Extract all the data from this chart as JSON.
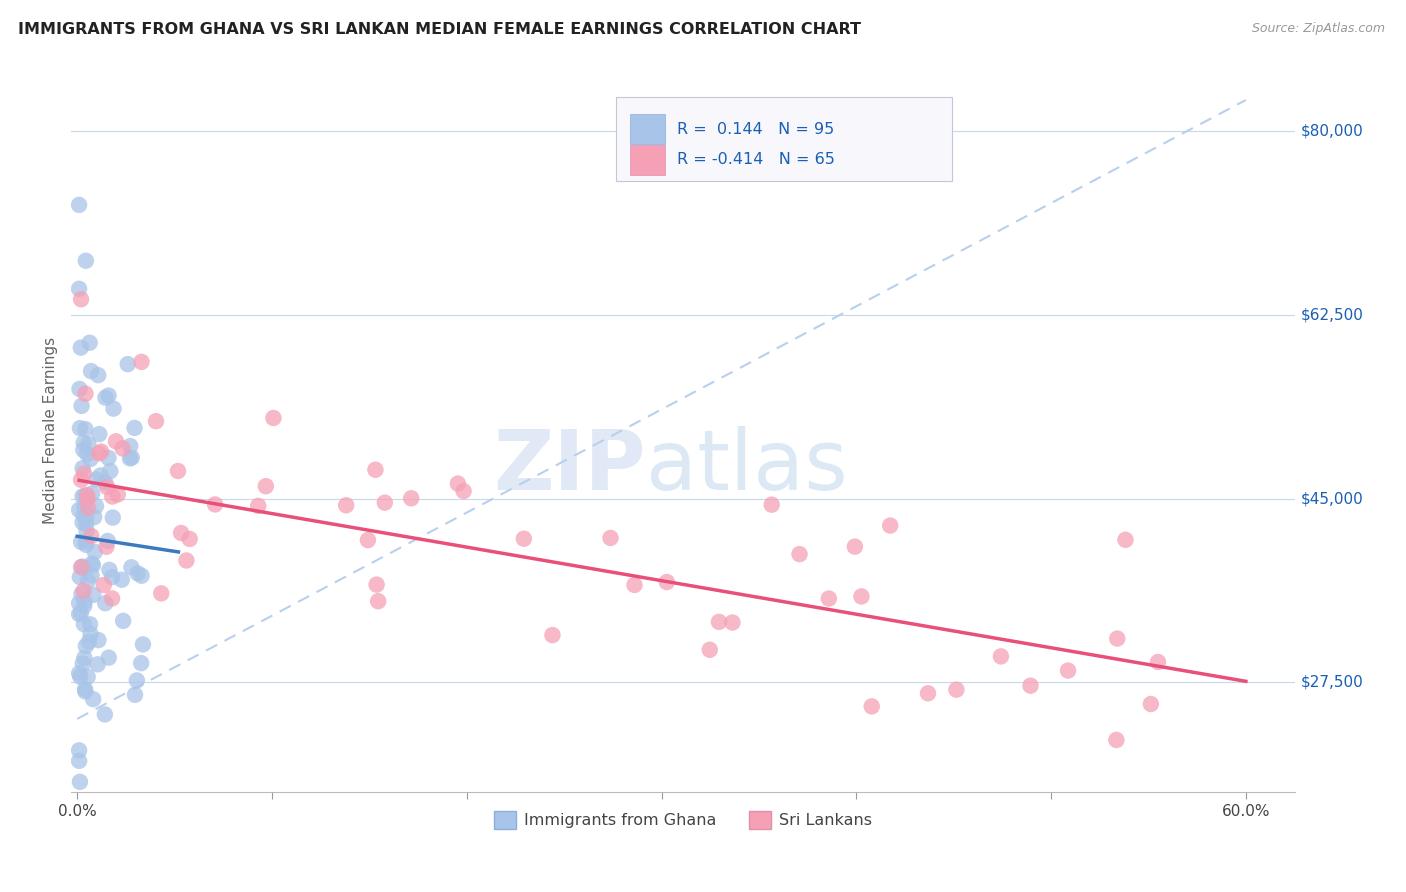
{
  "title": "IMMIGRANTS FROM GHANA VS SRI LANKAN MEDIAN FEMALE EARNINGS CORRELATION CHART",
  "source": "Source: ZipAtlas.com",
  "ylabel": "Median Female Earnings",
  "ytick_labels": [
    "$27,500",
    "$45,000",
    "$62,500",
    "$80,000"
  ],
  "ytick_values": [
    27500,
    45000,
    62500,
    80000
  ],
  "ghana_R": 0.144,
  "ghana_N": 95,
  "srilanka_R": -0.414,
  "srilanka_N": 65,
  "ghana_color": "#a8c4e8",
  "srilanka_color": "#f5a0b5",
  "ghana_line_color": "#3a7abf",
  "srilanka_line_color": "#e8507a",
  "dashed_line_color": "#b8d0ec",
  "legend_text_color": "#1a5fb4",
  "watermark_zip": "ZIP",
  "watermark_atlas": "atlas",
  "ylim_low": 17000,
  "ylim_high": 86000,
  "xlim_low": -0.003,
  "xlim_high": 0.625
}
